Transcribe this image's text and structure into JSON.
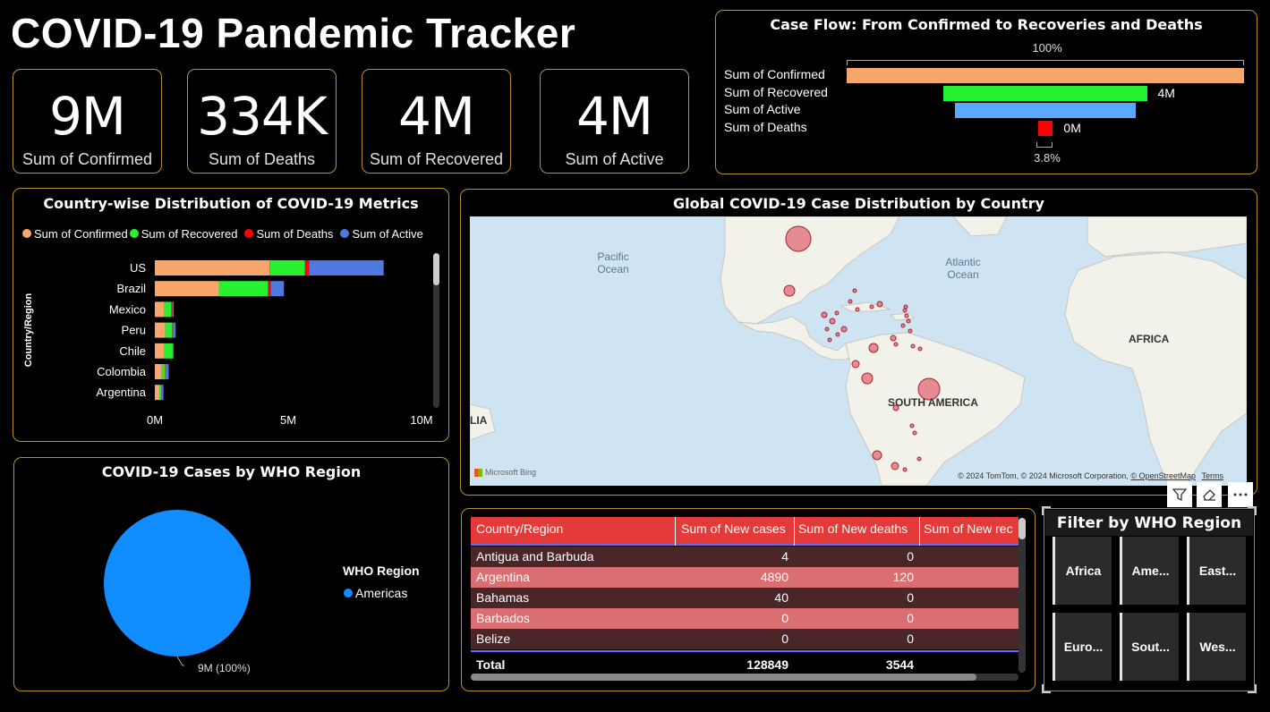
{
  "header": {
    "title": "COVID-19 Pandemic Tracker"
  },
  "kpis": [
    {
      "value": "9M",
      "label": "Sum of Confirmed"
    },
    {
      "value": "334K",
      "label": "Sum of Deaths"
    },
    {
      "value": "4M",
      "label": "Sum of Recovered"
    },
    {
      "value": "4M",
      "label": "Sum of Active"
    }
  ],
  "funnel": {
    "title": "Case Flow: From Confirmed to Recoveries and Deaths",
    "top_pct": "100%",
    "bottom_pct": "3.8%",
    "rows": [
      {
        "label": "Sum of Confirmed",
        "value": 8.8,
        "display": "",
        "color": "#f7a76c"
      },
      {
        "label": "Sum of Recovered",
        "value": 4.5,
        "display": "4M",
        "color": "#27f02f"
      },
      {
        "label": "Sum of Active",
        "value": 4.0,
        "display": "",
        "color": "#5aa9ff"
      },
      {
        "label": "Sum of Deaths",
        "value": 0.334,
        "display": "0M",
        "color": "#ff0000"
      }
    ]
  },
  "country_chart": {
    "title": "Country-wise Distribution of COVID-19 Metrics",
    "ylabel": "Country/Region",
    "legend": [
      {
        "name": "Sum of Confirmed",
        "color": "#f7a76c"
      },
      {
        "name": "Sum of Recovered",
        "color": "#27f02f"
      },
      {
        "name": "Sum of Deaths",
        "color": "#ff0000"
      },
      {
        "name": "Sum of Active",
        "color": "#4f79e0"
      }
    ],
    "xticks": [
      "0M",
      "5M",
      "10M"
    ]
  },
  "chart_data": [
    {
      "type": "bar",
      "orientation": "horizontal",
      "stacked": true,
      "title": "Country-wise Distribution of COVID-19 Metrics",
      "ylabel": "Country/Region",
      "xlim": [
        0,
        10
      ],
      "xunit": "M",
      "categories": [
        "US",
        "Brazil",
        "Mexico",
        "Peru",
        "Chile",
        "Colombia",
        "Argentina"
      ],
      "series": [
        {
          "name": "Sum of Confirmed",
          "values": [
            4.3,
            2.4,
            0.35,
            0.39,
            0.35,
            0.26,
            0.17
          ]
        },
        {
          "name": "Sum of Recovered",
          "values": [
            1.33,
            1.85,
            0.27,
            0.27,
            0.32,
            0.13,
            0.07
          ]
        },
        {
          "name": "Sum of Deaths",
          "values": [
            0.15,
            0.09,
            0.04,
            0.02,
            0.01,
            0.01,
            0.004
          ]
        },
        {
          "name": "Sum of Active",
          "values": [
            2.8,
            0.5,
            0.05,
            0.1,
            0.02,
            0.12,
            0.08
          ]
        }
      ]
    },
    {
      "type": "pie",
      "title": "COVID-19 Cases by WHO Region",
      "legend_title": "WHO Region",
      "slices": [
        {
          "name": "Americas",
          "value": 100,
          "label": "9M (100%)",
          "color": "#118dff"
        }
      ]
    }
  ],
  "map": {
    "title": "Global COVID-19 Case Distribution by Country",
    "labels": {
      "pacific": "Pacific\nOcean",
      "atlantic": "Atlantic\nOcean",
      "africa": "AFRICA",
      "south_america": "SOUTH AMERICA",
      "lia": "LIA"
    },
    "attribution": "© 2024 TomTom, © 2024 Microsoft Corporation,",
    "osm": "© OpenStreetMap",
    "terms": "Terms",
    "bing": "Microsoft Bing"
  },
  "pie": {
    "title": "COVID-19 Cases by WHO Region",
    "legend_title": "WHO Region",
    "legend_item": "Americas",
    "data_label": "9M (100%)",
    "color": "#118dff"
  },
  "table": {
    "headers": [
      "Country/Region",
      "Sum of New cases",
      "Sum of New deaths",
      "Sum of New rec"
    ],
    "rows": [
      {
        "country": "Antigua and Barbuda",
        "cases": "4",
        "deaths": "0"
      },
      {
        "country": "Argentina",
        "cases": "4890",
        "deaths": "120"
      },
      {
        "country": "Bahamas",
        "cases": "40",
        "deaths": "0"
      },
      {
        "country": "Barbados",
        "cases": "0",
        "deaths": "0"
      },
      {
        "country": "Belize",
        "cases": "0",
        "deaths": "0"
      }
    ],
    "total": {
      "label": "Total",
      "cases": "128849",
      "deaths": "3544"
    }
  },
  "slicer": {
    "title": "Filter by WHO Region",
    "buttons": [
      "Africa",
      "Ame...",
      "East...",
      "Euro...",
      "Sout...",
      "Wes..."
    ]
  }
}
